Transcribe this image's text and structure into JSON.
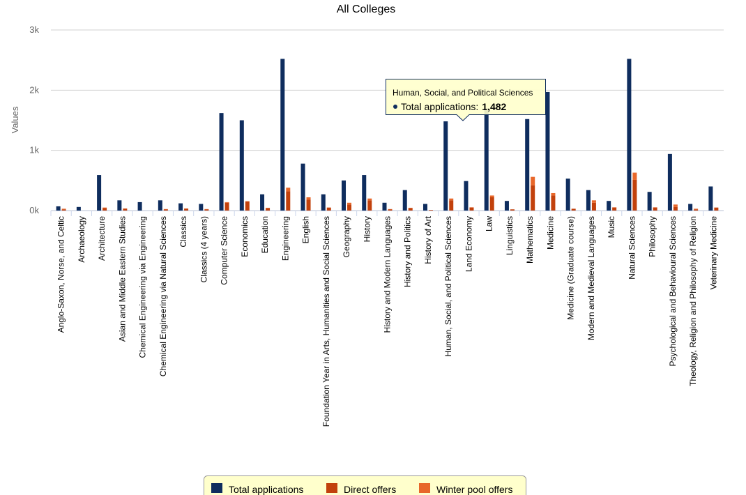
{
  "chart_data": {
    "type": "bar",
    "title": "All Colleges",
    "y_label": "Values",
    "categories": [
      "Anglo-Saxon, Norse, and Celtic",
      "Archaeology",
      "Architecture",
      "Asian and Middle Eastern Studies",
      "Chemical Engineering via Engineering",
      "Chemical Engineering via Natural Sciences",
      "Classics",
      "Classics (4 years)",
      "Computer Science",
      "Economics",
      "Education",
      "Engineering",
      "English",
      "Foundation Year in Arts, Humanities and Social Sciences",
      "Geography",
      "History",
      "History and Modern Languages",
      "History and Politics",
      "History of Art",
      "Human, Social, and Political Sciences",
      "Land Economy",
      "Law",
      "Linguistics",
      "Mathematics",
      "Medicine",
      "Medicine (Graduate course)",
      "Modern and Medieval Languages",
      "Music",
      "Natural Sciences",
      "Philosophy",
      "Psychological and Behavioural Sciences",
      "Theology, Religion and Philosophy of Religion",
      "Veterinary Medicine"
    ],
    "series": [
      {
        "name": "Total applications",
        "color": "#0f2d5e",
        "values": [
          70,
          60,
          590,
          170,
          140,
          170,
          120,
          110,
          1620,
          1500,
          270,
          2520,
          780,
          270,
          500,
          590,
          130,
          340,
          110,
          1482,
          490,
          1700,
          160,
          1520,
          1970,
          530,
          340,
          160,
          2520,
          310,
          940,
          110,
          400
        ]
      },
      {
        "name": "Direct offers",
        "color": "#c2410c",
        "stack": "offers",
        "values": [
          20,
          0,
          40,
          30,
          0,
          20,
          30,
          20,
          130,
          150,
          40,
          320,
          180,
          50,
          100,
          170,
          20,
          40,
          10,
          170,
          50,
          220,
          20,
          420,
          250,
          30,
          130,
          50,
          510,
          50,
          60,
          20,
          50
        ]
      },
      {
        "name": "Winter pool offers",
        "color": "#e8672a",
        "stack": "offers",
        "values": [
          10,
          0,
          10,
          5,
          0,
          5,
          5,
          5,
          10,
          5,
          5,
          60,
          40,
          0,
          30,
          30,
          5,
          5,
          0,
          30,
          5,
          30,
          0,
          140,
          40,
          0,
          40,
          5,
          120,
          5,
          40,
          10,
          0
        ]
      }
    ],
    "ylim": [
      0,
      3000
    ],
    "yticks": [
      {
        "value": 0,
        "label": "0k"
      },
      {
        "value": 1000,
        "label": "1k"
      },
      {
        "value": 2000,
        "label": "2k"
      },
      {
        "value": 3000,
        "label": "3k"
      }
    ],
    "grid": true,
    "legend": "bottom",
    "tooltip": {
      "title": "Human, Social, and Political Sciences",
      "text": "Total applications:",
      "value": "1,482"
    }
  }
}
